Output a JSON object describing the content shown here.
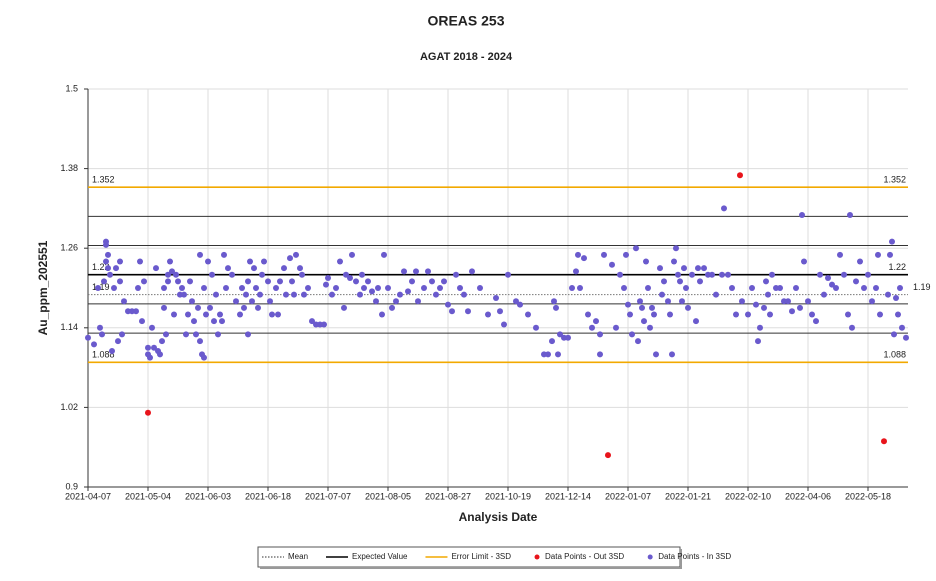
{
  "chart_data": {
    "type": "scatter",
    "title": "OREAS 253",
    "subtitle": "AGAT 2018 - 2024",
    "x_label": "Analysis Date",
    "y_label": "Au_ppm_202551",
    "xlim": [
      0,
      410
    ],
    "xticks": [
      {
        "value": 0,
        "label": "2021-04-07"
      },
      {
        "value": 30,
        "label": "2021-05-04"
      },
      {
        "value": 60,
        "label": "2021-06-03"
      },
      {
        "value": 90,
        "label": "2021-06-18"
      },
      {
        "value": 120,
        "label": "2021-07-07"
      },
      {
        "value": 150,
        "label": "2021-08-05"
      },
      {
        "value": 180,
        "label": "2021-08-27"
      },
      {
        "value": 210,
        "label": "2021-10-19"
      },
      {
        "value": 240,
        "label": "2021-12-14"
      },
      {
        "value": 270,
        "label": "2022-01-07"
      },
      {
        "value": 300,
        "label": "2022-01-21"
      },
      {
        "value": 330,
        "label": "2022-02-10"
      },
      {
        "value": 360,
        "label": "2022-04-06"
      },
      {
        "value": 390,
        "label": "2022-05-18"
      }
    ],
    "ylim": [
      0.9,
      1.5
    ],
    "yticks": [
      0.9,
      1.02,
      1.14,
      1.26,
      1.38,
      1.5
    ],
    "grid": true,
    "reference_lines": [
      {
        "name": "Mean",
        "values": [
          1.19
        ],
        "color": "#777777",
        "style": "dotted"
      },
      {
        "name": "Expected Value",
        "values": [
          1.22
        ],
        "color": "#000000",
        "style": "solid"
      },
      {
        "name": "Error Limit - 3SD",
        "values": [
          1.352,
          1.088
        ],
        "color": "#f2a900",
        "style": "solid"
      }
    ],
    "sd_lines": [
      1.308,
      1.264,
      1.176,
      1.132
    ],
    "series": [
      {
        "name": "Data Points - Out 3SD",
        "color": "#e8141b",
        "x": [
          30,
          260,
          326,
          398
        ],
        "values": [
          1.012,
          0.948,
          1.37,
          0.969
        ]
      },
      {
        "name": "Data Points - In 3SD",
        "color": "#6a5acd",
        "x": [
          0,
          3,
          5,
          6,
          7,
          8,
          9,
          9,
          9,
          10,
          10,
          11,
          12,
          13,
          14,
          15,
          16,
          16,
          17,
          18,
          20,
          22,
          24,
          25,
          26,
          27,
          28,
          30,
          30,
          31,
          32,
          33,
          34,
          35,
          36,
          37,
          38,
          38,
          39,
          40,
          40,
          41,
          42,
          43,
          44,
          45,
          46,
          47,
          48,
          49,
          50,
          51,
          52,
          53,
          54,
          55,
          56,
          56,
          57,
          58,
          58,
          59,
          60,
          61,
          62,
          63,
          64,
          65,
          66,
          67,
          68,
          69,
          70,
          72,
          74,
          76,
          77,
          78,
          79,
          80,
          80,
          81,
          82,
          83,
          84,
          85,
          86,
          87,
          88,
          90,
          91,
          92,
          94,
          95,
          96,
          98,
          99,
          101,
          102,
          103,
          104,
          106,
          107,
          108,
          110,
          112,
          114,
          116,
          118,
          119,
          120,
          122,
          124,
          126,
          128,
          129,
          131,
          132,
          134,
          136,
          137,
          138,
          140,
          142,
          144,
          145,
          147,
          148,
          150,
          152,
          154,
          156,
          158,
          160,
          162,
          164,
          165,
          168,
          170,
          172,
          174,
          176,
          178,
          180,
          182,
          184,
          186,
          188,
          190,
          192,
          196,
          200,
          204,
          206,
          208,
          210,
          214,
          216,
          220,
          224,
          228,
          230,
          232,
          233,
          234,
          235,
          236,
          238,
          240,
          242,
          244,
          245,
          246,
          248,
          250,
          252,
          254,
          256,
          256,
          258,
          262,
          264,
          266,
          268,
          269,
          270,
          271,
          272,
          274,
          275,
          276,
          277,
          278,
          279,
          280,
          281,
          282,
          283,
          284,
          286,
          287,
          288,
          290,
          291,
          292,
          293,
          294,
          295,
          296,
          297,
          298,
          299,
          300,
          302,
          304,
          305,
          306,
          308,
          310,
          312,
          314,
          317,
          318,
          320,
          322,
          324,
          327,
          330,
          332,
          334,
          335,
          336,
          338,
          339,
          340,
          341,
          342,
          344,
          346,
          348,
          350,
          352,
          354,
          356,
          357,
          358,
          360,
          362,
          364,
          366,
          368,
          370,
          372,
          374,
          376,
          378,
          380,
          381,
          382,
          384,
          386,
          388,
          390,
          392,
          394,
          395,
          396,
          400,
          401,
          402,
          403,
          404,
          405,
          406,
          407,
          409
        ],
        "values": [
          1.125,
          1.115,
          1.2,
          1.14,
          1.13,
          1.21,
          1.24,
          1.265,
          1.27,
          1.25,
          1.23,
          1.22,
          1.105,
          1.2,
          1.23,
          1.12,
          1.24,
          1.21,
          1.13,
          1.18,
          1.165,
          1.165,
          1.165,
          1.2,
          1.24,
          1.15,
          1.21,
          1.1,
          1.11,
          1.095,
          1.14,
          1.11,
          1.23,
          1.105,
          1.1,
          1.12,
          1.17,
          1.2,
          1.13,
          1.22,
          1.21,
          1.24,
          1.225,
          1.16,
          1.22,
          1.21,
          1.19,
          1.2,
          1.19,
          1.13,
          1.16,
          1.21,
          1.18,
          1.15,
          1.13,
          1.17,
          1.25,
          1.12,
          1.1,
          1.095,
          1.2,
          1.16,
          1.24,
          1.17,
          1.22,
          1.15,
          1.19,
          1.13,
          1.16,
          1.15,
          1.25,
          1.2,
          1.23,
          1.22,
          1.18,
          1.16,
          1.2,
          1.17,
          1.19,
          1.21,
          1.13,
          1.24,
          1.18,
          1.23,
          1.2,
          1.17,
          1.19,
          1.22,
          1.24,
          1.21,
          1.18,
          1.16,
          1.2,
          1.16,
          1.21,
          1.23,
          1.19,
          1.245,
          1.21,
          1.19,
          1.25,
          1.23,
          1.22,
          1.19,
          1.2,
          1.15,
          1.145,
          1.145,
          1.145,
          1.205,
          1.215,
          1.19,
          1.2,
          1.24,
          1.17,
          1.22,
          1.215,
          1.25,
          1.21,
          1.19,
          1.22,
          1.2,
          1.21,
          1.195,
          1.18,
          1.2,
          1.16,
          1.25,
          1.2,
          1.17,
          1.18,
          1.19,
          1.225,
          1.195,
          1.21,
          1.225,
          1.18,
          1.2,
          1.225,
          1.21,
          1.19,
          1.2,
          1.21,
          1.175,
          1.165,
          1.22,
          1.2,
          1.19,
          1.165,
          1.225,
          1.2,
          1.16,
          1.185,
          1.165,
          1.145,
          1.22,
          1.18,
          1.175,
          1.16,
          1.14,
          1.1,
          1.1,
          1.12,
          1.18,
          1.17,
          1.1,
          1.13,
          1.125,
          1.125,
          1.2,
          1.225,
          1.25,
          1.2,
          1.245,
          1.16,
          1.14,
          1.15,
          1.1,
          1.13,
          1.25,
          1.235,
          1.14,
          1.22,
          1.2,
          1.25,
          1.175,
          1.16,
          1.13,
          1.26,
          1.12,
          1.18,
          1.17,
          1.15,
          1.24,
          1.2,
          1.14,
          1.17,
          1.16,
          1.1,
          1.23,
          1.19,
          1.21,
          1.18,
          1.16,
          1.1,
          1.24,
          1.26,
          1.22,
          1.21,
          1.18,
          1.23,
          1.2,
          1.17,
          1.22,
          1.15,
          1.23,
          1.21,
          1.23,
          1.22,
          1.22,
          1.19,
          1.22,
          1.32,
          1.22,
          1.2,
          1.16,
          1.18,
          1.16,
          1.2,
          1.175,
          1.12,
          1.14,
          1.17,
          1.21,
          1.19,
          1.16,
          1.22,
          1.2,
          1.2,
          1.18,
          1.18,
          1.165,
          1.2,
          1.17,
          1.31,
          1.24,
          1.18,
          1.16,
          1.15,
          1.22,
          1.19,
          1.215,
          1.205,
          1.2,
          1.25,
          1.22,
          1.16,
          1.31,
          1.14,
          1.21,
          1.24,
          1.2,
          1.22,
          1.18,
          1.2,
          1.25,
          1.16,
          1.19,
          1.25,
          1.27,
          1.13,
          1.185,
          1.16,
          1.2,
          1.14,
          1.125
        ]
      }
    ]
  }
}
